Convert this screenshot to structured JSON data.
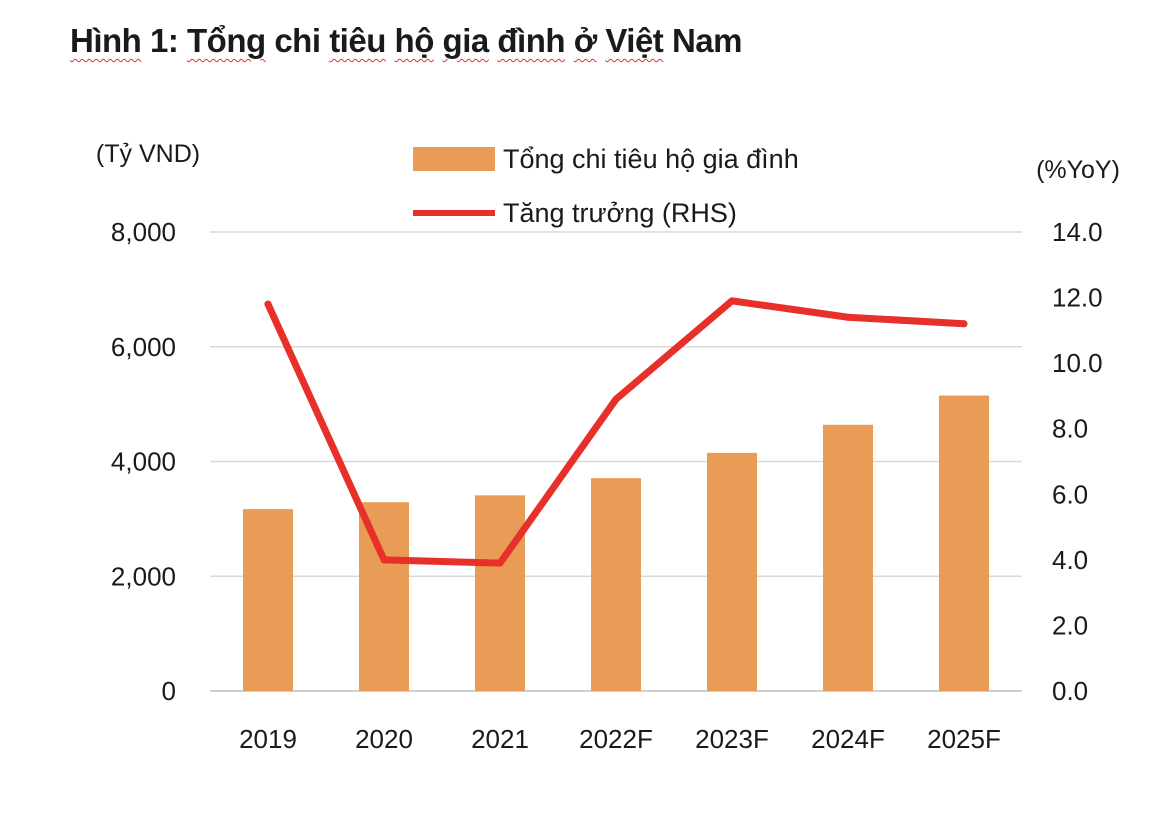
{
  "title_parts": [
    "Hình",
    " 1: ",
    "Tổng",
    " chi ",
    "tiêu",
    " ",
    "hộ",
    " ",
    "gia",
    " ",
    "đình",
    " ",
    "ở",
    " ",
    "Việt",
    " Nam"
  ],
  "chart_data": {
    "type": "bar",
    "title": "Hình 1: Tổng chi tiêu hộ gia đình ở Việt Nam",
    "categories": [
      "2019",
      "2020",
      "2021",
      "2022F",
      "2023F",
      "2024F",
      "2025F"
    ],
    "left_axis_unit": "(Tỷ VND)",
    "right_axis_unit": "(%YoY)",
    "left_ylim": [
      0,
      8000
    ],
    "left_ticks": [
      "0",
      "2,000",
      "4,000",
      "6,000",
      "8,000"
    ],
    "right_ylim": [
      0,
      14
    ],
    "right_ticks": [
      "0.0",
      "2.0",
      "4.0",
      "6.0",
      "8.0",
      "10.0",
      "12.0",
      "14.0"
    ],
    "grid": true,
    "legend_position": "top-center",
    "series": [
      {
        "name": "Tổng chi tiêu hộ gia đình",
        "type": "bar",
        "axis": "left",
        "color": "#E89C55",
        "values": [
          3170,
          3290,
          3410,
          3710,
          4150,
          4640,
          5150
        ]
      },
      {
        "name": "Tăng trưởng (RHS)",
        "type": "line",
        "axis": "right",
        "color": "#E8302A",
        "values": [
          11.8,
          4.0,
          3.9,
          8.9,
          11.9,
          11.4,
          11.2
        ]
      }
    ]
  }
}
